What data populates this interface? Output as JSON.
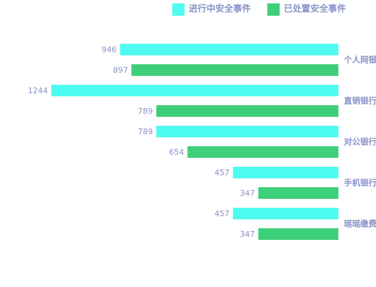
{
  "chart_data": {
    "type": "bar",
    "orientation": "horizontal",
    "direction": "right-to-left",
    "categories": [
      "个人网银",
      "直销银行",
      "对公银行",
      "手机银行",
      "瑶瑶缴费"
    ],
    "series": [
      {
        "name": "进行中安全事件",
        "color": "#4efcf0",
        "values": [
          946,
          1244,
          789,
          457,
          457
        ]
      },
      {
        "name": "已处置安全事件",
        "color": "#3ecf7a",
        "values": [
          897,
          789,
          654,
          347,
          347
        ]
      }
    ],
    "xlim": [
      0,
      1244
    ],
    "legend_position": "top-right",
    "grid": false,
    "data_labels": true
  },
  "legend": {
    "item_0": "进行中安全事件",
    "item_1": "已处置安全事件"
  },
  "colors": {
    "text": "#8a93c9"
  }
}
